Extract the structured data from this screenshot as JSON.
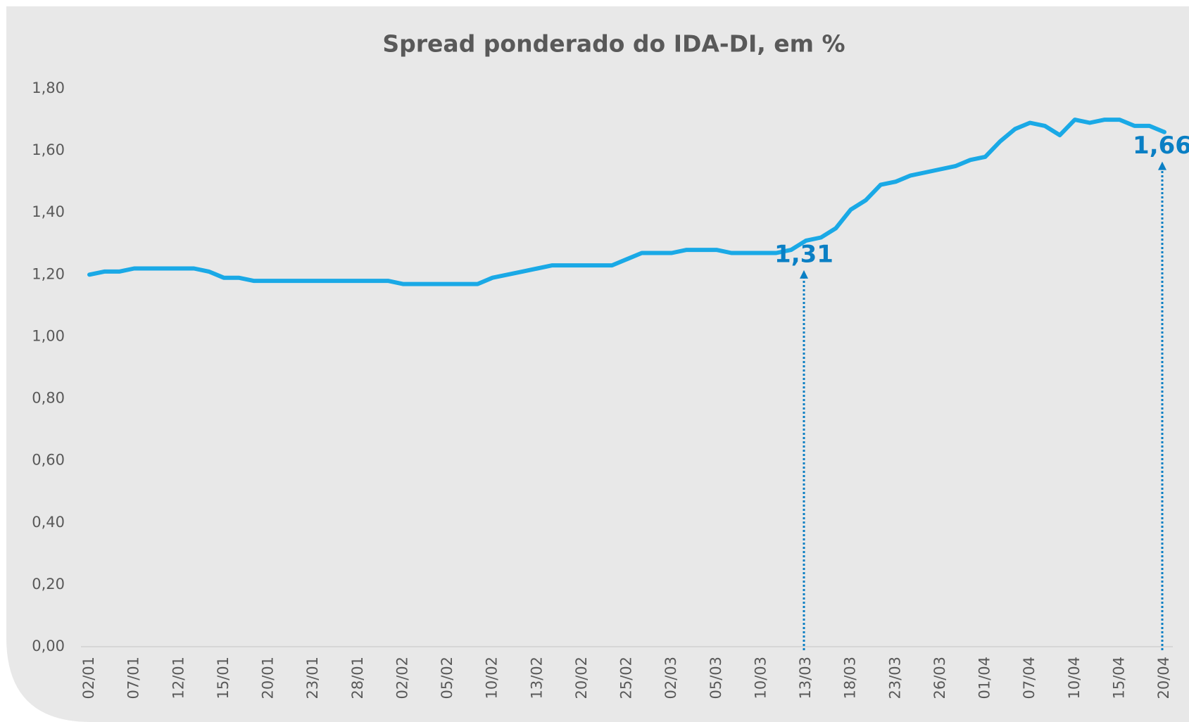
{
  "chart_data": {
    "type": "line",
    "title": "Spread ponderado do IDA-DI, em %",
    "categories": [
      "02/01",
      null,
      null,
      "07/01",
      null,
      null,
      "12/01",
      null,
      null,
      "15/01",
      null,
      null,
      "20/01",
      null,
      null,
      "23/01",
      null,
      null,
      "28/01",
      null,
      null,
      "02/02",
      null,
      null,
      "05/02",
      null,
      null,
      "10/02",
      null,
      null,
      "13/02",
      null,
      null,
      "20/02",
      null,
      null,
      "25/02",
      null,
      null,
      "02/03",
      null,
      null,
      "05/03",
      null,
      null,
      "10/03",
      null,
      null,
      "13/03",
      null,
      null,
      "18/03",
      null,
      null,
      "23/03",
      null,
      null,
      "26/03",
      null,
      null,
      "01/04",
      null,
      null,
      "07/04",
      null,
      null,
      "10/04",
      null,
      null,
      "15/04",
      null,
      null,
      "20/04"
    ],
    "series": [
      {
        "name": "Spread ponderado",
        "color": "#1aa9e6",
        "values": [
          1.2,
          1.21,
          1.21,
          1.22,
          1.22,
          1.22,
          1.22,
          1.22,
          1.21,
          1.19,
          1.19,
          1.18,
          1.18,
          1.18,
          1.18,
          1.18,
          1.18,
          1.18,
          1.18,
          1.18,
          1.18,
          1.17,
          1.17,
          1.17,
          1.17,
          1.17,
          1.17,
          1.19,
          1.2,
          1.21,
          1.22,
          1.23,
          1.23,
          1.23,
          1.23,
          1.23,
          1.25,
          1.27,
          1.27,
          1.27,
          1.28,
          1.28,
          1.28,
          1.27,
          1.27,
          1.27,
          1.27,
          1.28,
          1.31,
          1.32,
          1.35,
          1.41,
          1.44,
          1.49,
          1.5,
          1.52,
          1.53,
          1.54,
          1.55,
          1.57,
          1.58,
          1.63,
          1.67,
          1.69,
          1.68,
          1.65,
          1.7,
          1.69,
          1.7,
          1.7,
          1.68,
          1.68,
          1.66
        ],
        "value_labels": [
          null,
          null,
          null,
          null,
          null,
          null,
          null,
          null,
          null,
          null,
          null,
          null,
          null,
          null,
          null,
          null,
          null,
          null,
          null,
          null,
          null,
          null,
          null,
          null,
          null,
          null,
          null,
          null,
          null,
          null,
          null,
          null,
          null,
          null,
          null,
          null,
          null,
          null,
          null,
          null,
          null,
          null,
          null,
          null,
          null,
          null,
          null,
          null,
          "1,31",
          null,
          null,
          null,
          null,
          null,
          null,
          null,
          null,
          null,
          null,
          null,
          null,
          null,
          null,
          null,
          null,
          null,
          null,
          null,
          null,
          null,
          null,
          null,
          "1,66"
        ],
        "label_color": "#0a7fc4"
      }
    ],
    "ylim": [
      0,
      1.8
    ],
    "yticks": [
      {
        "value": 0,
        "label": "0,00"
      },
      {
        "value": 0.2,
        "label": "0,20"
      },
      {
        "value": 0.4,
        "label": "0,40"
      },
      {
        "value": 0.6,
        "label": "0,60"
      },
      {
        "value": 0.8,
        "label": "0,80"
      },
      {
        "value": 1.0,
        "label": "1,00"
      },
      {
        "value": 1.2,
        "label": "1,20"
      },
      {
        "value": 1.4,
        "label": "1,40"
      },
      {
        "value": 1.6,
        "label": "1,60"
      },
      {
        "value": 1.8,
        "label": "1,80"
      }
    ],
    "grid": false
  }
}
